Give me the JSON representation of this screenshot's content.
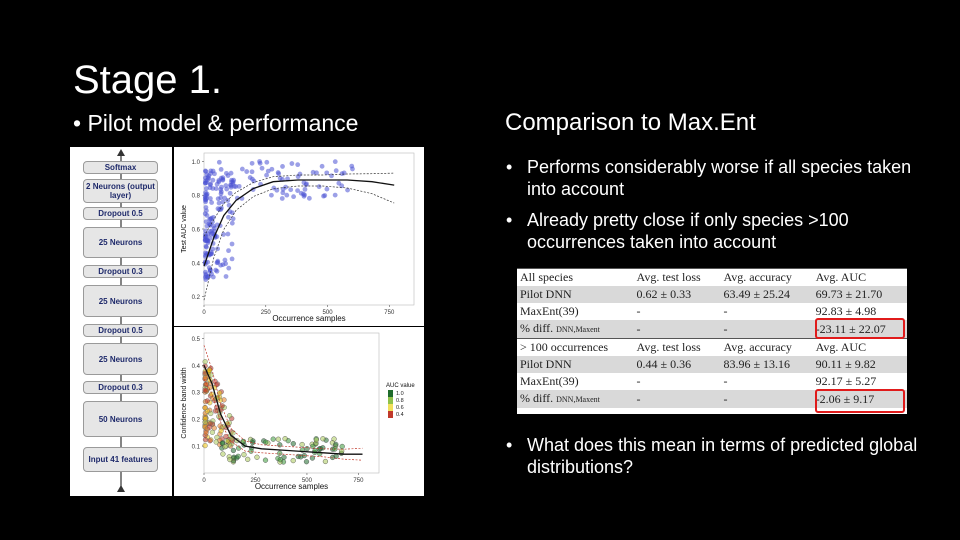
{
  "title": "Stage 1.",
  "left_bullet": "• Pilot model & performance",
  "right_heading": "Comparison to Max.Ent",
  "bullets": [
    "Performs considerably worse if all species taken into account",
    "Already pretty close if only species >100 occurrences taken into account",
    "What does this mean in terms of predicted global distributions?"
  ],
  "bullet_glyph": "•",
  "network": {
    "layers": [
      {
        "label": "Softmax",
        "type": "layer"
      },
      {
        "label": "2 Neurons (output layer)",
        "type": "layer"
      },
      {
        "label": "Dropout 0.5",
        "type": "drop"
      },
      {
        "label": "25 Neurons",
        "type": "layer"
      },
      {
        "label": "Dropout 0.3",
        "type": "drop"
      },
      {
        "label": "25 Neurons",
        "type": "layer"
      },
      {
        "label": "Dropout 0.5",
        "type": "drop"
      },
      {
        "label": "25 Neurons",
        "type": "layer"
      },
      {
        "label": "Dropout 0.3",
        "type": "drop"
      },
      {
        "label": "50 Neurons",
        "type": "layer"
      },
      {
        "label": "Input 41 features",
        "type": "layer"
      }
    ]
  },
  "chart_data": [
    {
      "type": "scatter",
      "title": "",
      "xlabel": "Occurrence samples",
      "ylabel": "Test AUC value",
      "xlim": [
        0,
        850
      ],
      "ylim": [
        0.15,
        1.05
      ],
      "xticks": [
        "0",
        "250",
        "500",
        "750"
      ],
      "yticks": [
        "0.2",
        "0.4",
        "0.6",
        "0.8",
        "1.0"
      ],
      "point_color": "#4a52d4",
      "fit_color": "#111111",
      "fit_curve": {
        "x": [
          0,
          40,
          80,
          130,
          200,
          280,
          380,
          480,
          580,
          680,
          770
        ],
        "y": [
          0.38,
          0.55,
          0.68,
          0.77,
          0.84,
          0.88,
          0.89,
          0.89,
          0.89,
          0.88,
          0.86
        ]
      }
    },
    {
      "type": "scatter",
      "title": "",
      "xlabel": "Occurrence samples",
      "ylabel": "Confidence band width",
      "xlim": [
        0,
        850
      ],
      "ylim": [
        0,
        0.52
      ],
      "xticks": [
        "0",
        "250",
        "500",
        "750"
      ],
      "yticks": [
        "0.1",
        "0.2",
        "0.3",
        "0.4",
        "0.5"
      ],
      "legend_title": "AUC value",
      "legend_ticks": [
        "1.0",
        "0.8",
        "0.6",
        "0.4"
      ],
      "legend_placement": "right",
      "fit_color": "#111111",
      "fit_curve": {
        "x": [
          0,
          40,
          80,
          130,
          200,
          280,
          380,
          480,
          580,
          680,
          770
        ],
        "y": [
          0.4,
          0.33,
          0.22,
          0.14,
          0.1,
          0.09,
          0.085,
          0.08,
          0.075,
          0.07,
          0.07
        ]
      }
    }
  ],
  "table": {
    "sections": [
      {
        "header": [
          "All species",
          "Avg. test loss",
          "Avg. accuracy",
          "Avg. AUC"
        ],
        "rows": [
          {
            "name": "Pilot DNN",
            "sub": "",
            "loss": "0.62 ± 0.33",
            "acc": "63.49 ± 25.24",
            "auc": "69.73 ± 21.70"
          },
          {
            "name": "MaxEnt(39)",
            "sub": "",
            "loss": "-",
            "acc": "-",
            "auc": "92.83 ± 4.98"
          },
          {
            "name": "% diff.",
            "sub": "DNN,Maxent",
            "loss": "-",
            "acc": "-",
            "auc": "-23.11 ± 22.07"
          }
        ]
      },
      {
        "header": [
          "> 100 occurrences",
          "Avg. test loss",
          "Avg. accuracy",
          "Avg. AUC"
        ],
        "rows": [
          {
            "name": "Pilot DNN",
            "sub": "",
            "loss": "0.44 ± 0.36",
            "acc": "83.96 ± 13.16",
            "auc": "90.11 ± 9.82"
          },
          {
            "name": "MaxEnt(39)",
            "sub": "",
            "loss": "-",
            "acc": "-",
            "auc": "92.17 ± 5.27"
          },
          {
            "name": "% diff.",
            "sub": "DNN,Maxent",
            "loss": "-",
            "acc": "-",
            "auc": "-2.06 ± 9.17"
          }
        ]
      }
    ],
    "highlight_color": "#e01b1b"
  }
}
